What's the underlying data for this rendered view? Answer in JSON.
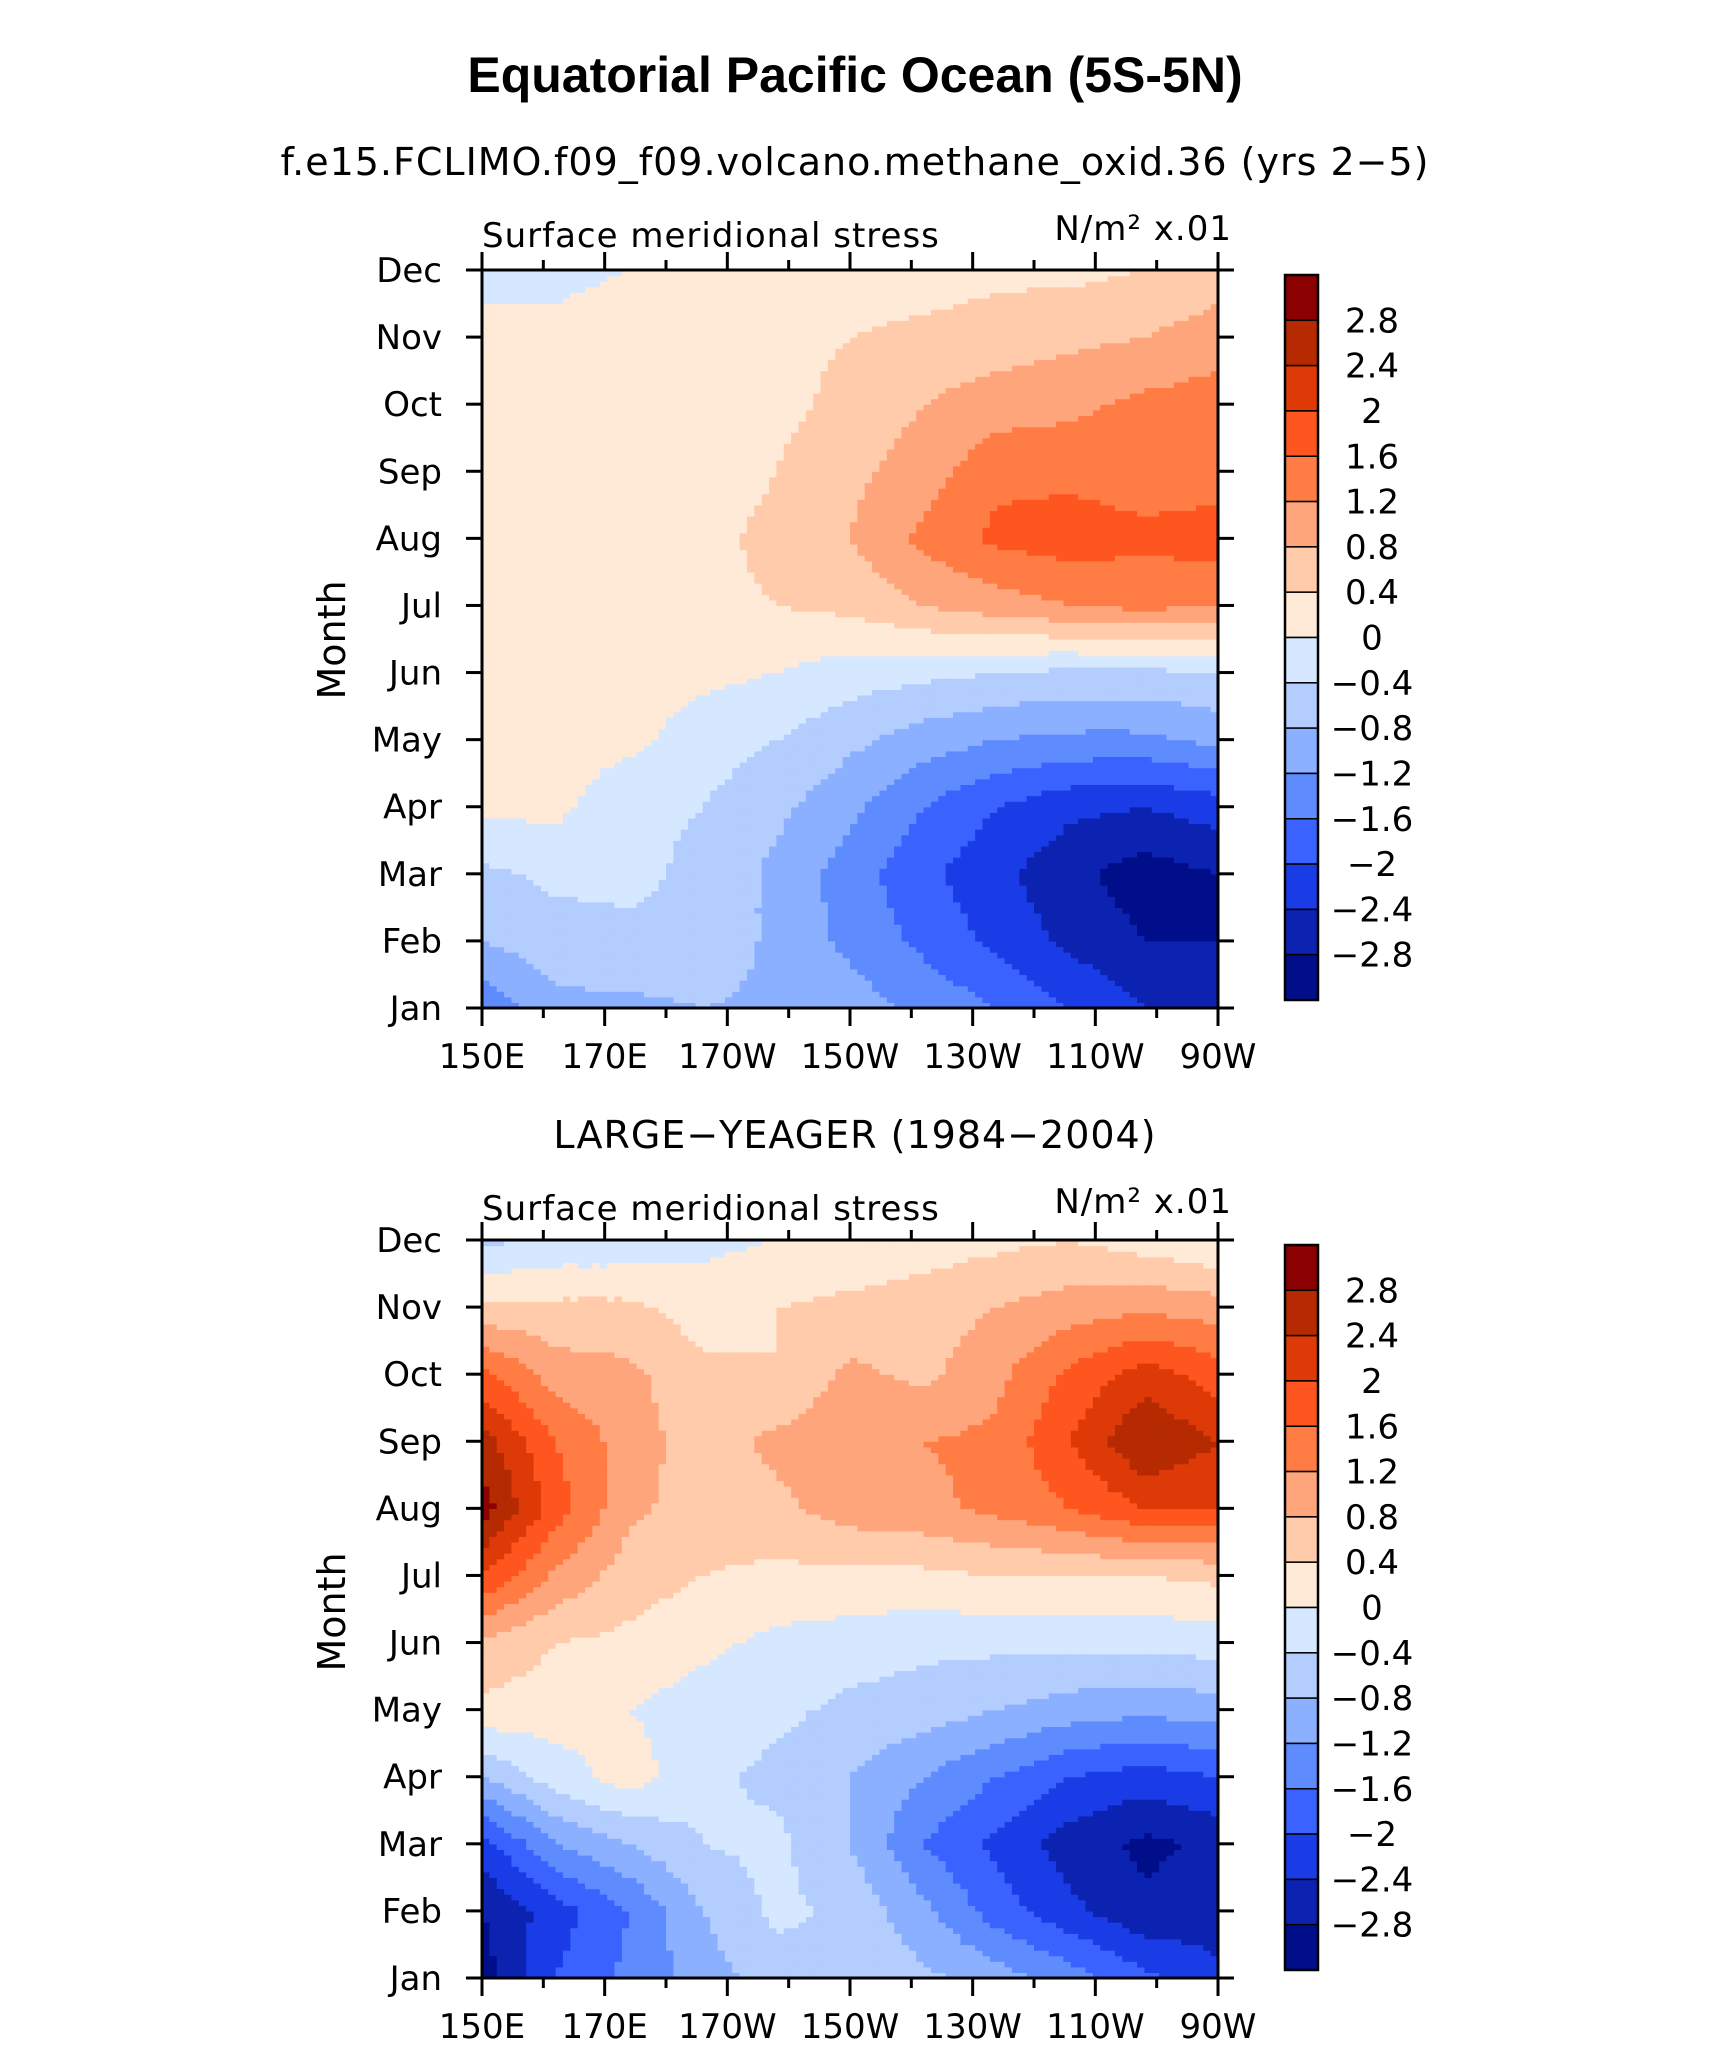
{
  "figure": {
    "title": "Equatorial Pacific Ocean (5S-5N)"
  },
  "colorbar": {
    "levels": [
      "2.8",
      "2.4",
      "2",
      "1.6",
      "1.2",
      "0.8",
      "0.4",
      "0",
      "−0.4",
      "−0.8",
      "−1.2",
      "−1.6",
      "−2",
      "−2.4",
      "−2.8"
    ],
    "colors": [
      "#8b0000",
      "#b52a00",
      "#dd3a08",
      "#ff5620",
      "#ff7c45",
      "#ffa57c",
      "#ffcbaa",
      "#ffe9d7",
      "#d6e8ff",
      "#b4cdff",
      "#8bb0ff",
      "#5e8cff",
      "#3a62ff",
      "#1a3ce6",
      "#0c22b0",
      "#000e8a"
    ]
  },
  "chart_data": [
    {
      "type": "heatmap",
      "subtitle": "f.e15.FCLIMO.f09_f09.volcano.methane_oxid.36 (yrs 2−5)",
      "panel_label_left": "Surface meridional stress",
      "panel_label_right": "N/m² x.01",
      "ylabel": "Month",
      "xticks": [
        "150E",
        "170E",
        "170W",
        "150W",
        "130W",
        "110W",
        "90W"
      ],
      "yticks": [
        "Jan",
        "Feb",
        "Mar",
        "Apr",
        "May",
        "Jun",
        "Jul",
        "Aug",
        "Sep",
        "Oct",
        "Nov",
        "Dec"
      ],
      "xlim": [
        150,
        270
      ],
      "levels": [
        -2.8,
        -2.4,
        -2.0,
        -1.6,
        -1.2,
        -0.8,
        -0.4,
        0,
        0.4,
        0.8,
        1.2,
        1.6,
        2.0,
        2.4,
        2.8
      ],
      "x": [
        150,
        162,
        174,
        186,
        198,
        210,
        222,
        234,
        246,
        258,
        270
      ],
      "months": [
        "Jan",
        "Feb",
        "Mar",
        "Apr",
        "May",
        "Jun",
        "Jul",
        "Aug",
        "Sep",
        "Oct",
        "Nov",
        "Dec"
      ],
      "z": [
        [
          -1.5,
          -0.9,
          -0.9,
          -0.8,
          -0.9,
          -1.0,
          -1.3,
          -1.6,
          -2.0,
          -2.4,
          -2.7
        ],
        [
          -0.8,
          -0.6,
          -0.5,
          -0.5,
          -0.9,
          -1.3,
          -1.7,
          -2.1,
          -2.5,
          -2.8,
          -2.8
        ],
        [
          -0.5,
          -0.3,
          -0.3,
          -0.5,
          -0.9,
          -1.4,
          -1.9,
          -2.3,
          -2.7,
          -3.0,
          -2.8
        ],
        [
          0.1,
          0.1,
          -0.3,
          -0.4,
          -0.7,
          -1.1,
          -1.6,
          -2.0,
          -2.3,
          -2.4,
          -2.2
        ],
        [
          0.2,
          0.2,
          0.1,
          -0.2,
          -0.4,
          -0.7,
          -1.0,
          -1.2,
          -1.3,
          -1.3,
          -1.1
        ],
        [
          0.3,
          0.2,
          0.2,
          0.1,
          0.0,
          -0.2,
          -0.3,
          -0.4,
          -0.5,
          -0.5,
          -0.4
        ],
        [
          0.4,
          0.2,
          0.2,
          0.3,
          0.4,
          0.5,
          0.8,
          1.0,
          1.2,
          1.3,
          1.2
        ],
        [
          0.4,
          0.2,
          0.2,
          0.3,
          0.5,
          0.8,
          1.3,
          1.7,
          1.8,
          1.7,
          1.8
        ],
        [
          0.4,
          0.2,
          0.2,
          0.2,
          0.4,
          0.7,
          1.0,
          1.5,
          1.5,
          1.4,
          1.4
        ],
        [
          0.3,
          0.2,
          0.2,
          0.2,
          0.3,
          0.5,
          0.8,
          1.0,
          1.1,
          1.3,
          1.4
        ],
        [
          0.1,
          0.1,
          0.2,
          0.2,
          0.3,
          0.4,
          0.5,
          0.6,
          0.7,
          0.8,
          1.0
        ],
        [
          -0.1,
          -0.1,
          0.0,
          0.1,
          0.1,
          0.2,
          0.2,
          0.3,
          0.3,
          0.4,
          0.6
        ]
      ]
    },
    {
      "type": "heatmap",
      "subtitle": "LARGE−YEAGER (1984−2004)",
      "panel_label_left": "Surface meridional stress",
      "panel_label_right": "N/m² x.01",
      "ylabel": "Month",
      "xticks": [
        "150E",
        "170E",
        "170W",
        "150W",
        "130W",
        "110W",
        "90W"
      ],
      "yticks": [
        "Jan",
        "Feb",
        "Mar",
        "Apr",
        "May",
        "Jun",
        "Jul",
        "Aug",
        "Sep",
        "Oct",
        "Nov",
        "Dec"
      ],
      "xlim": [
        150,
        270
      ],
      "levels": [
        -2.8,
        -2.4,
        -2.0,
        -1.6,
        -1.2,
        -0.8,
        -0.4,
        0,
        0.4,
        0.8,
        1.2,
        1.6,
        2.0,
        2.4,
        2.8
      ],
      "x": [
        150,
        162,
        174,
        186,
        198,
        210,
        222,
        234,
        246,
        258,
        270
      ],
      "months": [
        "Jan",
        "Feb",
        "Mar",
        "Apr",
        "May",
        "Jun",
        "Jul",
        "Aug",
        "Sep",
        "Oct",
        "Nov",
        "Dec"
      ],
      "z": [
        [
          -3.0,
          -2.0,
          -1.5,
          -1.0,
          -0.6,
          -0.5,
          -0.7,
          -1.0,
          -1.4,
          -1.9,
          -2.3
        ],
        [
          -2.8,
          -2.2,
          -1.6,
          -0.8,
          -0.3,
          -0.5,
          -1.1,
          -1.8,
          -2.3,
          -2.7,
          -2.6
        ],
        [
          -2.2,
          -1.2,
          -0.8,
          -0.4,
          -0.3,
          -0.8,
          -1.6,
          -2.1,
          -2.6,
          -2.9,
          -2.7
        ],
        [
          -0.8,
          -0.2,
          0.2,
          -0.3,
          -0.5,
          -0.8,
          -1.2,
          -1.6,
          -2.0,
          -2.2,
          -2.0
        ],
        [
          0.3,
          0.2,
          0.0,
          -0.2,
          -0.3,
          -0.5,
          -0.6,
          -0.8,
          -1.0,
          -1.1,
          -1.0
        ],
        [
          0.7,
          0.4,
          0.3,
          0.1,
          -0.1,
          -0.2,
          -0.3,
          -0.3,
          -0.3,
          -0.3,
          -0.2
        ],
        [
          2.0,
          1.1,
          0.6,
          0.4,
          0.3,
          0.3,
          0.3,
          0.4,
          0.4,
          0.4,
          0.5
        ],
        [
          3.0,
          1.8,
          0.9,
          0.6,
          0.7,
          1.0,
          1.1,
          1.3,
          1.6,
          2.0,
          2.0
        ],
        [
          2.6,
          1.6,
          1.0,
          0.6,
          0.9,
          1.1,
          1.2,
          1.3,
          2.0,
          2.8,
          2.4
        ],
        [
          1.7,
          1.0,
          0.9,
          0.5,
          0.4,
          0.9,
          0.7,
          1.1,
          1.7,
          2.2,
          1.8
        ],
        [
          0.5,
          0.5,
          0.5,
          0.2,
          0.4,
          0.5,
          0.6,
          0.8,
          1.0,
          1.1,
          1.0
        ],
        [
          -0.5,
          -0.3,
          -0.3,
          -0.1,
          0.0,
          0.1,
          0.2,
          0.3,
          0.4,
          0.2,
          0.0
        ]
      ]
    }
  ]
}
